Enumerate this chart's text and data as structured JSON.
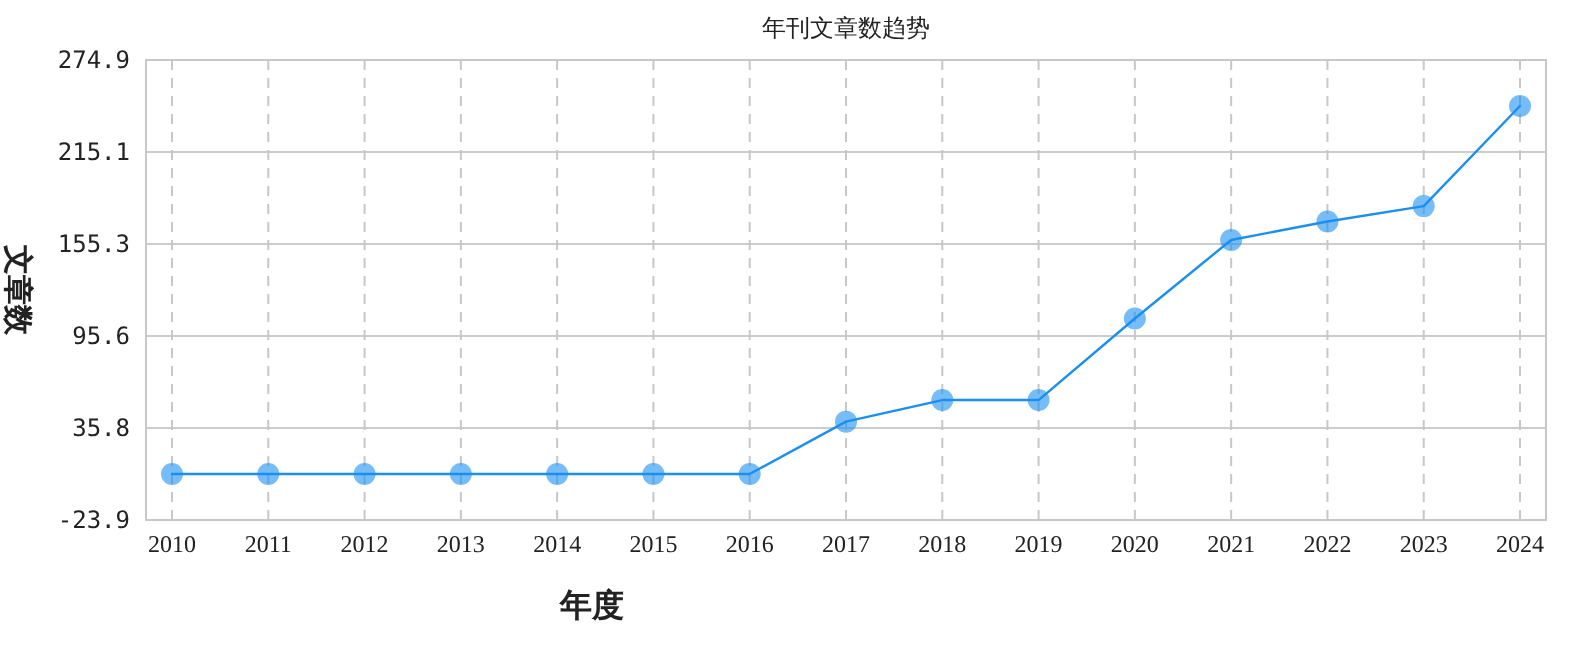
{
  "chart_data": {
    "type": "line",
    "title": "年刊文章数趋势",
    "xlabel": "年度",
    "ylabel": "文章数",
    "categories": [
      "2010",
      "2011",
      "2012",
      "2013",
      "2014",
      "2015",
      "2016",
      "2017",
      "2018",
      "2019",
      "2020",
      "2021",
      "2022",
      "2023",
      "2024"
    ],
    "series": [
      {
        "color": "#1a8ff0",
        "values": [
          6,
          6,
          6,
          6,
          6,
          6,
          6,
          40,
          54,
          54,
          107,
          158,
          170,
          180,
          245
        ]
      }
    ],
    "ylim": [
      -23.9,
      274.9
    ],
    "yticks": [
      -23.9,
      35.8,
      95.6,
      155.3,
      215.1,
      274.9
    ],
    "grid": true,
    "marker": "circle"
  }
}
